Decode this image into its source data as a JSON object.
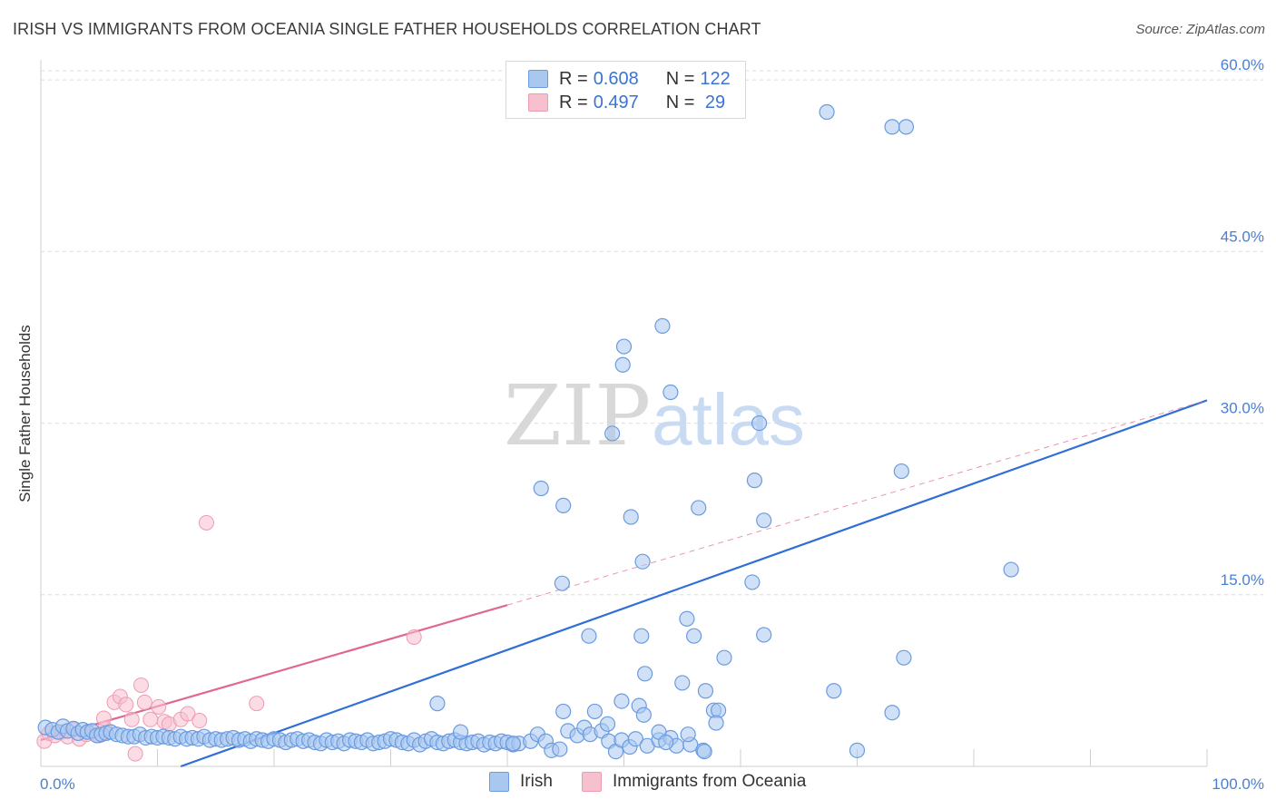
{
  "header": {
    "title": "IRISH VS IMMIGRANTS FROM OCEANIA SINGLE FATHER HOUSEHOLDS CORRELATION CHART",
    "source": "Source: ZipAtlas.com"
  },
  "legend": {
    "irish": {
      "r_label": "R = ",
      "r_value": "0.608",
      "n_label": "N = ",
      "n_value": "122"
    },
    "oceania": {
      "r_label": "R = ",
      "r_value": "0.497",
      "n_label": "N = ",
      "n_value": " 29"
    }
  },
  "bottom_legend": {
    "irish": "Irish",
    "oceania": "Immigrants from Oceania"
  },
  "watermark": {
    "zip": "ZIP",
    "atlas": "atlas"
  },
  "colors": {
    "irish_fill": "#a9c8f0",
    "irish_stroke": "#6a9be0",
    "irish_line": "#2f6fd6",
    "oceania_fill": "#f7c0cf",
    "oceania_stroke": "#ee9ab2",
    "oceania_line": "#e06890",
    "tick": "#4a7fd4",
    "grid": "#dcdcdc"
  },
  "chart_data": {
    "type": "scatter",
    "title": "IRISH VS IMMIGRANTS FROM OCEANIA SINGLE FATHER HOUSEHOLDS CORRELATION CHART",
    "xlabel": "",
    "ylabel": "Single Father Households",
    "xlim": [
      0,
      100
    ],
    "ylim": [
      0,
      63
    ],
    "x_tick_labels": [
      "0.0%",
      "100.0%"
    ],
    "y_ticks": [
      15,
      30,
      45,
      60
    ],
    "y_tick_labels": [
      "15.0%",
      "30.0%",
      "45.0%",
      "60.0%"
    ],
    "grid": true,
    "legend_position": "top-center",
    "series": [
      {
        "name": "Irish",
        "points": [
          [
            0.4,
            3.4
          ],
          [
            1.0,
            3.2
          ],
          [
            1.5,
            3.0
          ],
          [
            1.9,
            3.5
          ],
          [
            2.3,
            3.1
          ],
          [
            2.8,
            3.3
          ],
          [
            3.2,
            2.9
          ],
          [
            3.6,
            3.2
          ],
          [
            4.0,
            3.0
          ],
          [
            4.4,
            3.1
          ],
          [
            4.8,
            2.7
          ],
          [
            5.2,
            2.8
          ],
          [
            5.6,
            2.9
          ],
          [
            6.0,
            3.0
          ],
          [
            6.5,
            2.8
          ],
          [
            7.0,
            2.7
          ],
          [
            7.5,
            2.6
          ],
          [
            8.0,
            2.6
          ],
          [
            8.5,
            2.8
          ],
          [
            9.0,
            2.5
          ],
          [
            9.5,
            2.6
          ],
          [
            10.0,
            2.5
          ],
          [
            10.5,
            2.6
          ],
          [
            11.0,
            2.5
          ],
          [
            11.5,
            2.4
          ],
          [
            12.0,
            2.6
          ],
          [
            12.5,
            2.4
          ],
          [
            13.0,
            2.5
          ],
          [
            13.5,
            2.4
          ],
          [
            14.0,
            2.6
          ],
          [
            14.5,
            2.3
          ],
          [
            15.0,
            2.4
          ],
          [
            15.5,
            2.3
          ],
          [
            16.0,
            2.4
          ],
          [
            16.5,
            2.5
          ],
          [
            17.0,
            2.3
          ],
          [
            17.5,
            2.4
          ],
          [
            18.0,
            2.2
          ],
          [
            18.5,
            2.4
          ],
          [
            19.0,
            2.3
          ],
          [
            19.5,
            2.2
          ],
          [
            20.0,
            2.4
          ],
          [
            20.5,
            2.3
          ],
          [
            21.0,
            2.1
          ],
          [
            21.5,
            2.3
          ],
          [
            22.0,
            2.4
          ],
          [
            22.5,
            2.2
          ],
          [
            23.0,
            2.3
          ],
          [
            23.5,
            2.1
          ],
          [
            24.0,
            2.0
          ],
          [
            24.5,
            2.3
          ],
          [
            25.0,
            2.1
          ],
          [
            25.5,
            2.2
          ],
          [
            26.0,
            2.0
          ],
          [
            26.5,
            2.3
          ],
          [
            27.0,
            2.2
          ],
          [
            27.5,
            2.1
          ],
          [
            28.0,
            2.3
          ],
          [
            28.5,
            2.0
          ],
          [
            29.0,
            2.1
          ],
          [
            29.5,
            2.2
          ],
          [
            30.0,
            2.4
          ],
          [
            30.5,
            2.3
          ],
          [
            31.0,
            2.1
          ],
          [
            31.5,
            2.0
          ],
          [
            32.0,
            2.3
          ],
          [
            32.5,
            1.9
          ],
          [
            33.0,
            2.2
          ],
          [
            33.5,
            2.4
          ],
          [
            34.0,
            2.1
          ],
          [
            34.5,
            2.0
          ],
          [
            35.0,
            2.2
          ],
          [
            35.5,
            2.3
          ],
          [
            36.0,
            2.1
          ],
          [
            36.5,
            2.0
          ],
          [
            37.0,
            2.1
          ],
          [
            37.5,
            2.2
          ],
          [
            38.0,
            1.9
          ],
          [
            38.5,
            2.1
          ],
          [
            39.0,
            2.0
          ],
          [
            39.5,
            2.2
          ],
          [
            40.0,
            2.1
          ],
          [
            40.5,
            1.9
          ],
          [
            41.0,
            2.0
          ],
          [
            42.0,
            2.2
          ],
          [
            42.6,
            2.8
          ],
          [
            43.3,
            2.2
          ],
          [
            43.8,
            1.4
          ],
          [
            44.5,
            1.5
          ],
          [
            45.2,
            3.1
          ],
          [
            46.0,
            2.7
          ],
          [
            46.6,
            3.4
          ],
          [
            47.1,
            2.8
          ],
          [
            48.1,
            3.1
          ],
          [
            48.7,
            2.2
          ],
          [
            49.3,
            1.3
          ],
          [
            49.8,
            2.3
          ],
          [
            50.5,
            1.7
          ],
          [
            51.0,
            2.4
          ],
          [
            52.0,
            1.8
          ],
          [
            53.0,
            2.3
          ],
          [
            54.0,
            2.5
          ],
          [
            54.5,
            1.8
          ],
          [
            55.7,
            1.9
          ],
          [
            56.8,
            1.4
          ],
          [
            57.7,
            4.9
          ],
          [
            58.1,
            4.9
          ],
          [
            49.8,
            5.7
          ],
          [
            51.3,
            5.3
          ],
          [
            51.7,
            4.5
          ],
          [
            53.0,
            3.0
          ],
          [
            55.0,
            7.3
          ],
          [
            57.9,
            3.8
          ],
          [
            62.0,
            11.5
          ],
          [
            61.0,
            16.1
          ],
          [
            61.2,
            25.0
          ],
          [
            62.0,
            21.5
          ],
          [
            56.0,
            11.4
          ],
          [
            68.0,
            6.6
          ],
          [
            74.0,
            9.5
          ],
          [
            70.0,
            1.4
          ],
          [
            73.0,
            4.7
          ]
        ]
      },
      {
        "name": "Immigrants from Oceania",
        "points": [
          [
            0.3,
            2.2
          ],
          [
            0.7,
            2.9
          ],
          [
            1.2,
            2.7
          ],
          [
            1.8,
            3.0
          ],
          [
            2.3,
            2.6
          ],
          [
            2.8,
            3.2
          ],
          [
            3.3,
            2.4
          ],
          [
            3.9,
            2.8
          ],
          [
            4.4,
            3.1
          ],
          [
            5.0,
            2.7
          ],
          [
            5.5,
            3.3
          ],
          [
            5.4,
            4.2
          ],
          [
            6.3,
            5.6
          ],
          [
            6.8,
            6.1
          ],
          [
            7.3,
            5.4
          ],
          [
            7.8,
            4.1
          ],
          [
            8.1,
            1.1
          ],
          [
            8.6,
            7.1
          ],
          [
            8.9,
            5.6
          ],
          [
            9.4,
            4.1
          ],
          [
            10.1,
            5.2
          ],
          [
            10.6,
            3.9
          ],
          [
            11.0,
            3.7
          ],
          [
            12.0,
            4.1
          ],
          [
            12.6,
            4.6
          ],
          [
            13.6,
            4.0
          ],
          [
            14.2,
            21.3
          ],
          [
            18.5,
            5.5
          ],
          [
            32.0,
            11.3
          ]
        ]
      }
    ],
    "trend_lines": [
      {
        "series": "Irish",
        "from": [
          12.0,
          0.0
        ],
        "to": [
          100.0,
          32.0
        ]
      },
      {
        "series": "Immigrants from Oceania",
        "from": [
          0.0,
          2.3
        ],
        "to": [
          40.0,
          14.1
        ],
        "extended_to": [
          100.0,
          32.0
        ]
      }
    ],
    "extra_irish_points": [
      [
        67.4,
        57.2
      ],
      [
        73.0,
        55.9
      ],
      [
        74.2,
        55.9
      ],
      [
        53.3,
        38.5
      ],
      [
        50.0,
        36.7
      ],
      [
        49.9,
        35.1
      ],
      [
        54.0,
        32.7
      ],
      [
        49.0,
        29.1
      ],
      [
        61.6,
        30.0
      ],
      [
        73.8,
        25.8
      ],
      [
        42.9,
        24.3
      ],
      [
        44.8,
        22.8
      ],
      [
        50.6,
        21.8
      ],
      [
        56.4,
        22.6
      ],
      [
        51.6,
        17.9
      ],
      [
        83.2,
        17.2
      ],
      [
        44.7,
        16.0
      ],
      [
        47.0,
        11.4
      ],
      [
        51.5,
        11.4
      ],
      [
        55.4,
        12.9
      ],
      [
        58.6,
        9.5
      ],
      [
        51.8,
        8.1
      ],
      [
        57.0,
        6.6
      ],
      [
        44.8,
        4.8
      ],
      [
        47.5,
        4.8
      ],
      [
        48.6,
        3.7
      ],
      [
        55.5,
        2.8
      ],
      [
        53.6,
        2.1
      ],
      [
        56.9,
        1.3
      ],
      [
        40.5,
        2.0
      ],
      [
        36.0,
        3.0
      ],
      [
        34.0,
        5.5
      ]
    ]
  }
}
